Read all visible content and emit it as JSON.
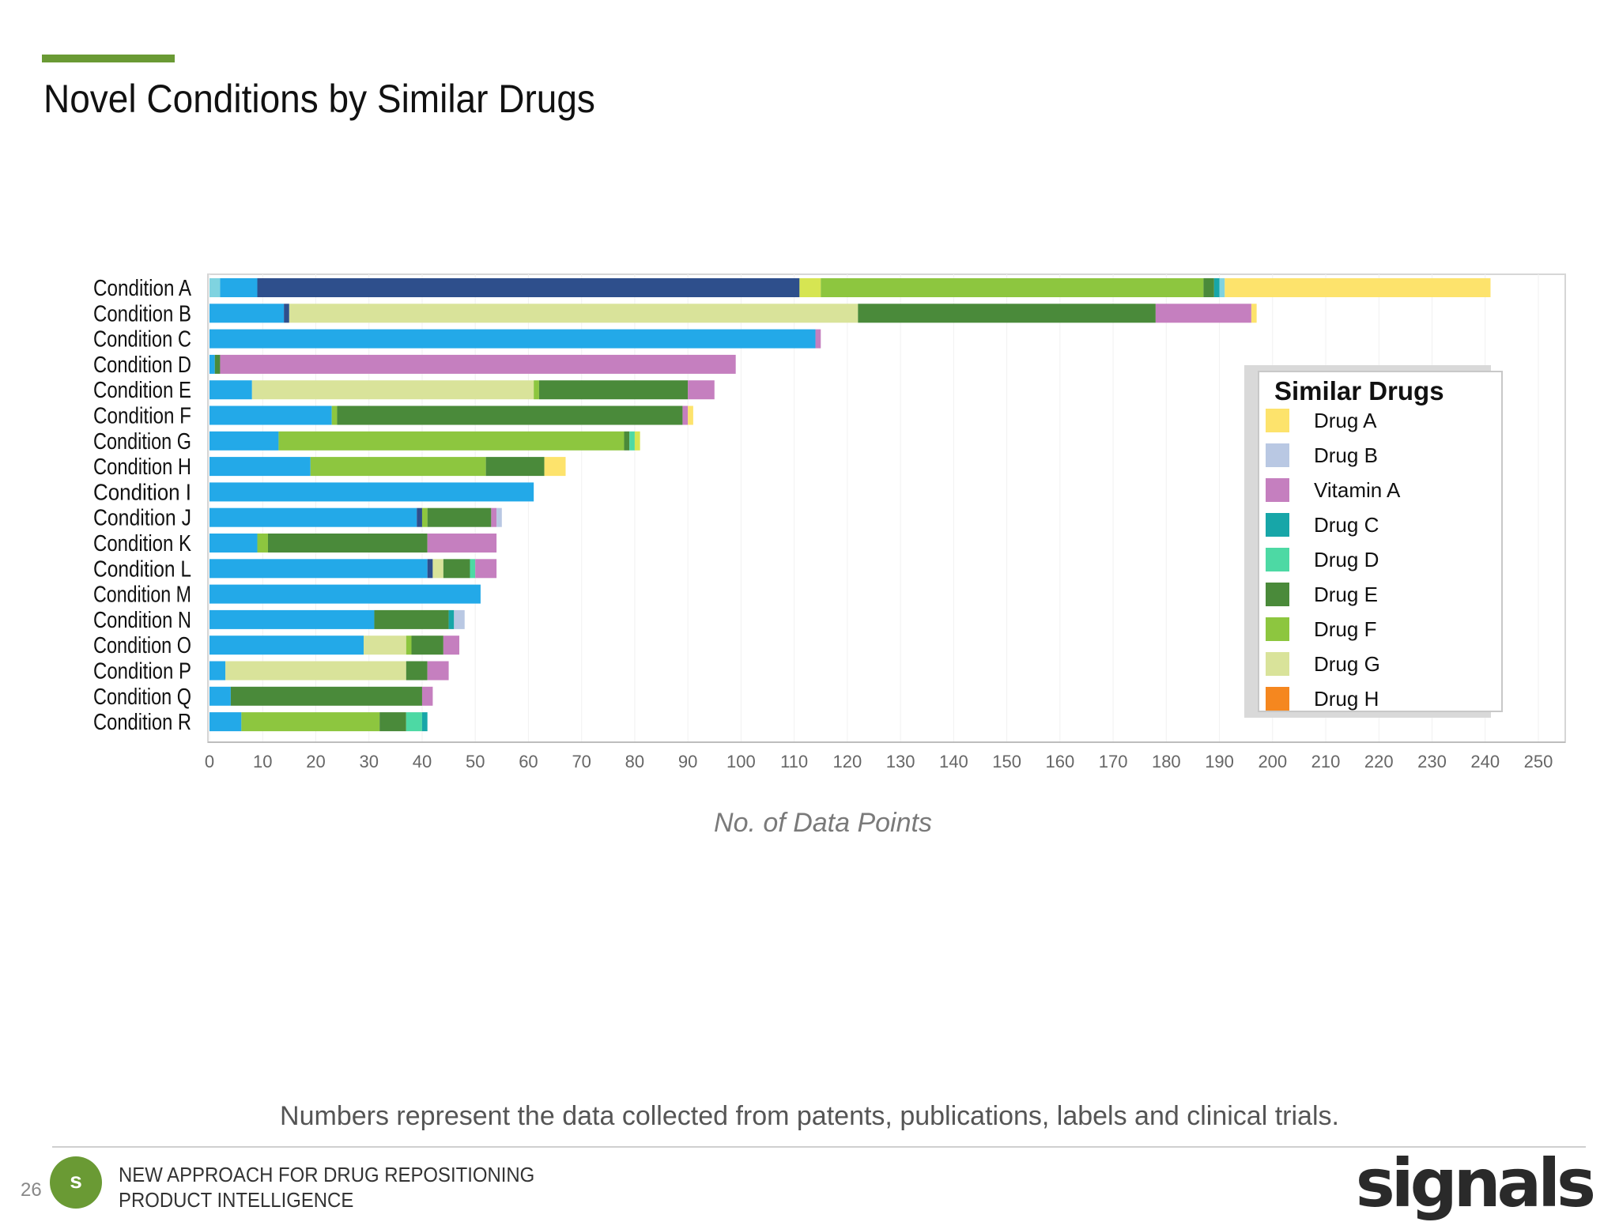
{
  "page": {
    "title": "Novel Conditions by Similar Drugs",
    "footnote": "Numbers represent the data collected from patents, publications, labels and clinical trials.",
    "page_number": "26",
    "footer_line1": "NEW APPROACH FOR DRUG REPOSITIONING",
    "footer_line2": "PRODUCT INTELLIGENCE",
    "logo_letter": "s",
    "brand": "signals",
    "accent_color": "#6a9a34"
  },
  "chart_data": {
    "type": "bar",
    "orientation": "horizontal",
    "stacked": true,
    "title": "",
    "xlabel": "No. of Data Points",
    "ylabel": "",
    "xlim": [
      0,
      250
    ],
    "x_ticks": [
      0,
      10,
      20,
      30,
      40,
      50,
      60,
      70,
      80,
      90,
      100,
      110,
      120,
      130,
      140,
      150,
      160,
      170,
      180,
      190,
      200,
      210,
      220,
      230,
      240,
      250
    ],
    "grid": true,
    "legend_title": "Similar Drugs",
    "legend_position": "right",
    "legend": [
      {
        "name": "Drug A",
        "color": "#fde36c"
      },
      {
        "name": "Drug B",
        "color": "#b9c8e3"
      },
      {
        "name": "Vitamin A",
        "color": "#c57fbf"
      },
      {
        "name": "Drug C",
        "color": "#17a6a8"
      },
      {
        "name": "Drug D",
        "color": "#4dd9a4"
      },
      {
        "name": "Drug E",
        "color": "#4a8a3a"
      },
      {
        "name": "Drug F",
        "color": "#8dc63f"
      },
      {
        "name": "Drug G",
        "color": "#d9e39a"
      },
      {
        "name": "Drug H",
        "color": "#f5871f"
      }
    ],
    "categories": [
      "Condition A",
      "Condition B",
      "Condition C",
      "Condition D",
      "Condition E",
      "Condition F",
      "Condition G",
      "Condition H",
      "Condition I",
      "Condition J",
      "Condition K",
      "Condition L",
      "Condition M",
      "Condition N",
      "Condition O",
      "Condition P",
      "Condition Q",
      "Condition R"
    ],
    "bars": [
      [
        {
          "color": "#7fd3e0",
          "value": 2
        },
        {
          "color": "#23a9e8",
          "value": 7
        },
        {
          "color": "#2e4f8c",
          "value": 102
        },
        {
          "color": "#d6e552",
          "value": 4
        },
        {
          "color": "#8dc63f",
          "value": 72
        },
        {
          "color": "#4a8a3a",
          "value": 2
        },
        {
          "color": "#17a6a8",
          "value": 1
        },
        {
          "color": "#7fd3e0",
          "value": 1
        },
        {
          "color": "#fde36c",
          "value": 50
        }
      ],
      [
        {
          "color": "#23a9e8",
          "value": 14
        },
        {
          "color": "#2e4f8c",
          "value": 1
        },
        {
          "color": "#d9e39a",
          "value": 107
        },
        {
          "color": "#4a8a3a",
          "value": 56
        },
        {
          "color": "#c57fbf",
          "value": 18
        },
        {
          "color": "#fde36c",
          "value": 1
        }
      ],
      [
        {
          "color": "#23a9e8",
          "value": 114
        },
        {
          "color": "#c57fbf",
          "value": 1
        }
      ],
      [
        {
          "color": "#23a9e8",
          "value": 1
        },
        {
          "color": "#4a8a3a",
          "value": 1
        },
        {
          "color": "#c57fbf",
          "value": 97
        }
      ],
      [
        {
          "color": "#23a9e8",
          "value": 8
        },
        {
          "color": "#d9e39a",
          "value": 53
        },
        {
          "color": "#8dc63f",
          "value": 1
        },
        {
          "color": "#4a8a3a",
          "value": 28
        },
        {
          "color": "#c57fbf",
          "value": 5
        }
      ],
      [
        {
          "color": "#23a9e8",
          "value": 23
        },
        {
          "color": "#8dc63f",
          "value": 1
        },
        {
          "color": "#4a8a3a",
          "value": 65
        },
        {
          "color": "#c57fbf",
          "value": 1
        },
        {
          "color": "#fde36c",
          "value": 1
        }
      ],
      [
        {
          "color": "#23a9e8",
          "value": 13
        },
        {
          "color": "#8dc63f",
          "value": 65
        },
        {
          "color": "#4a8a3a",
          "value": 1
        },
        {
          "color": "#4dd9a4",
          "value": 1
        },
        {
          "color": "#d6e552",
          "value": 1
        }
      ],
      [
        {
          "color": "#23a9e8",
          "value": 19
        },
        {
          "color": "#8dc63f",
          "value": 33
        },
        {
          "color": "#4a8a3a",
          "value": 11
        },
        {
          "color": "#fde36c",
          "value": 4
        }
      ],
      [
        {
          "color": "#23a9e8",
          "value": 61
        }
      ],
      [
        {
          "color": "#23a9e8",
          "value": 39
        },
        {
          "color": "#2e4f8c",
          "value": 1
        },
        {
          "color": "#8dc63f",
          "value": 1
        },
        {
          "color": "#4a8a3a",
          "value": 12
        },
        {
          "color": "#c57fbf",
          "value": 1
        },
        {
          "color": "#b9c8e3",
          "value": 1
        }
      ],
      [
        {
          "color": "#23a9e8",
          "value": 9
        },
        {
          "color": "#8dc63f",
          "value": 2
        },
        {
          "color": "#4a8a3a",
          "value": 30
        },
        {
          "color": "#c57fbf",
          "value": 13
        }
      ],
      [
        {
          "color": "#23a9e8",
          "value": 41
        },
        {
          "color": "#2e4f8c",
          "value": 1
        },
        {
          "color": "#d9e39a",
          "value": 2
        },
        {
          "color": "#4a8a3a",
          "value": 5
        },
        {
          "color": "#4dd9a4",
          "value": 1
        },
        {
          "color": "#c57fbf",
          "value": 4
        }
      ],
      [
        {
          "color": "#23a9e8",
          "value": 51
        }
      ],
      [
        {
          "color": "#23a9e8",
          "value": 31
        },
        {
          "color": "#4a8a3a",
          "value": 14
        },
        {
          "color": "#17a6a8",
          "value": 1
        },
        {
          "color": "#b9c8e3",
          "value": 2
        }
      ],
      [
        {
          "color": "#23a9e8",
          "value": 29
        },
        {
          "color": "#d9e39a",
          "value": 8
        },
        {
          "color": "#8dc63f",
          "value": 1
        },
        {
          "color": "#4a8a3a",
          "value": 6
        },
        {
          "color": "#c57fbf",
          "value": 3
        }
      ],
      [
        {
          "color": "#23a9e8",
          "value": 3
        },
        {
          "color": "#d9e39a",
          "value": 34
        },
        {
          "color": "#4a8a3a",
          "value": 4
        },
        {
          "color": "#c57fbf",
          "value": 4
        }
      ],
      [
        {
          "color": "#23a9e8",
          "value": 4
        },
        {
          "color": "#4a8a3a",
          "value": 36
        },
        {
          "color": "#c57fbf",
          "value": 2
        }
      ],
      [
        {
          "color": "#23a9e8",
          "value": 6
        },
        {
          "color": "#8dc63f",
          "value": 26
        },
        {
          "color": "#4a8a3a",
          "value": 5
        },
        {
          "color": "#4dd9a4",
          "value": 3
        },
        {
          "color": "#17a6a8",
          "value": 1
        }
      ]
    ]
  }
}
